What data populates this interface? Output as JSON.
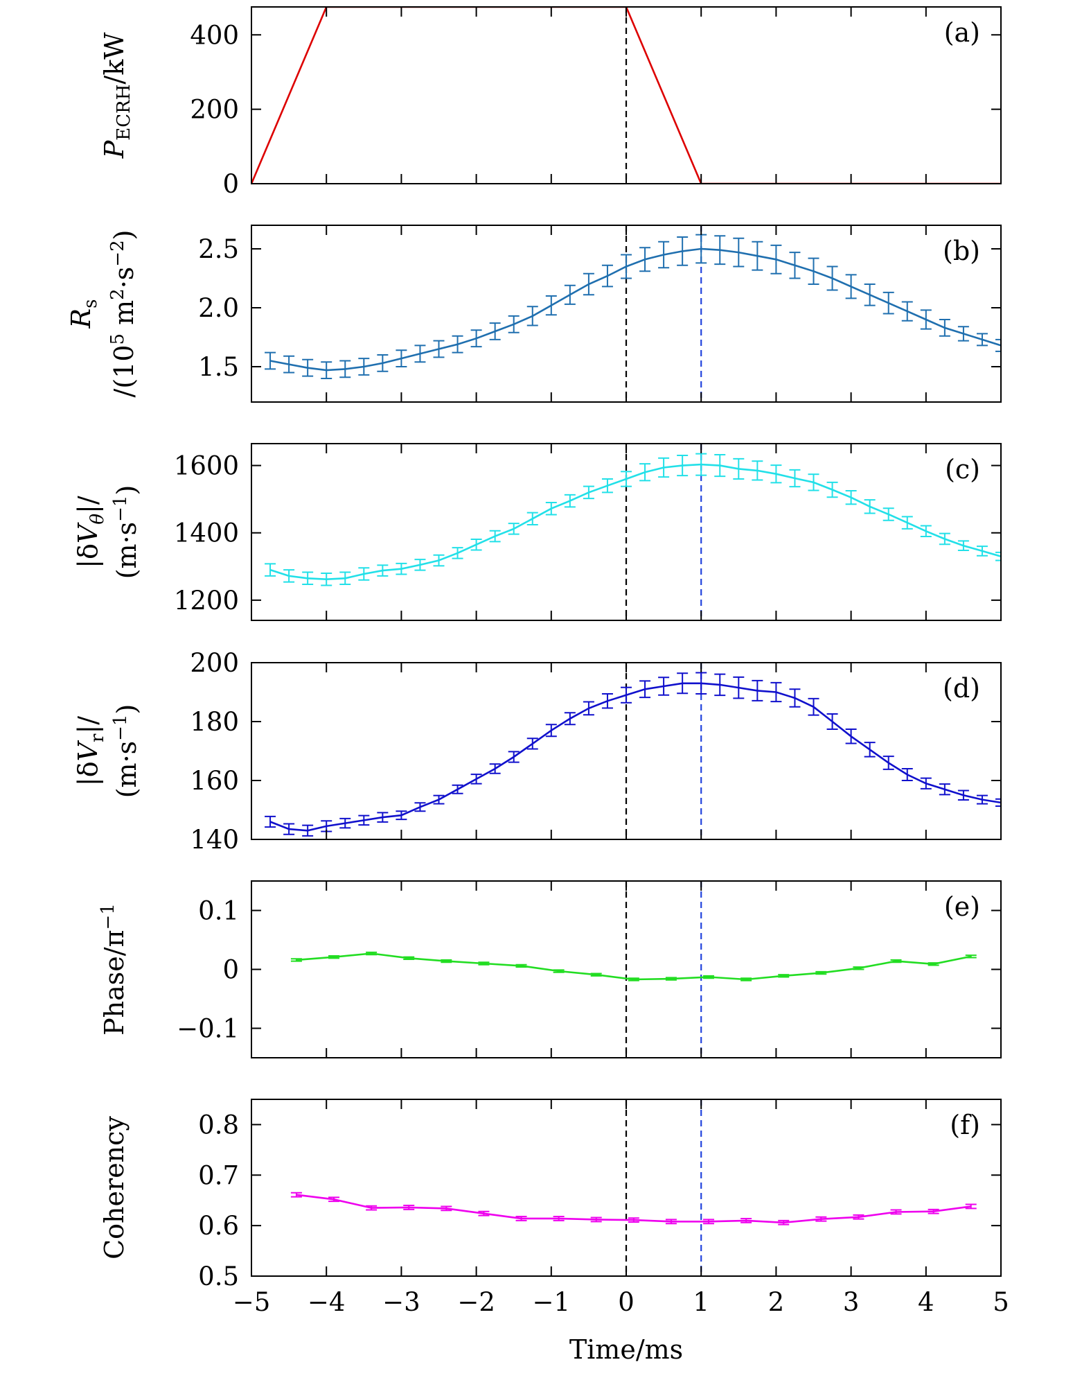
{
  "chart_data": [
    {
      "type": "line",
      "panel_label": "(a)",
      "ylabel": {
        "var": "P",
        "sub": "ECRH",
        "rest": "/kW"
      },
      "xlim": [
        -5,
        5
      ],
      "ylim": [
        0,
        475
      ],
      "yticks": [
        0,
        200,
        400
      ],
      "ytick_labels": [
        "0",
        "200",
        "400"
      ],
      "grid": false,
      "series": [
        {
          "color": "#dd0000",
          "errorbars": false,
          "x": [
            -5,
            -4,
            0,
            1,
            5
          ],
          "y": [
            0,
            475,
            475,
            0,
            0
          ]
        }
      ],
      "vlines": [
        {
          "x": 0,
          "color": "#000000"
        }
      ]
    },
    {
      "type": "line",
      "panel_label": "(b)",
      "ylabel": {
        "line1_var": "R",
        "line1_sub": "s",
        "line2": "/(10",
        "line2_sup": "5",
        "line2_rest": " m",
        "line2_sup2": "2",
        "line2_rest2": "·s",
        "line2_sup3": "−2",
        "line2_end": ")"
      },
      "xlim": [
        -5,
        5
      ],
      "ylim": [
        1.2,
        2.7
      ],
      "yticks": [
        1.5,
        2.0,
        2.5
      ],
      "ytick_labels": [
        "1.5",
        "2.0",
        "2.5"
      ],
      "grid": false,
      "series": [
        {
          "color": "#1f6faf",
          "errorbars": true,
          "x": [
            -4.75,
            -4.5,
            -4.25,
            -4.0,
            -3.75,
            -3.5,
            -3.25,
            -3.0,
            -2.75,
            -2.5,
            -2.25,
            -2.0,
            -1.75,
            -1.5,
            -1.25,
            -1.0,
            -0.75,
            -0.5,
            -0.25,
            0.0,
            0.25,
            0.5,
            0.75,
            1.0,
            1.25,
            1.5,
            1.75,
            2.0,
            2.25,
            2.5,
            2.75,
            3.0,
            3.25,
            3.5,
            3.75,
            4.0,
            4.25,
            4.5,
            4.75,
            5.0
          ],
          "y": [
            1.55,
            1.52,
            1.49,
            1.47,
            1.48,
            1.5,
            1.53,
            1.57,
            1.61,
            1.65,
            1.69,
            1.74,
            1.8,
            1.86,
            1.93,
            2.02,
            2.11,
            2.2,
            2.27,
            2.35,
            2.41,
            2.45,
            2.48,
            2.5,
            2.49,
            2.47,
            2.44,
            2.41,
            2.36,
            2.31,
            2.25,
            2.18,
            2.11,
            2.04,
            1.97,
            1.9,
            1.83,
            1.78,
            1.73,
            1.68
          ],
          "err": [
            0.07,
            0.07,
            0.07,
            0.07,
            0.07,
            0.07,
            0.07,
            0.07,
            0.07,
            0.07,
            0.07,
            0.07,
            0.07,
            0.07,
            0.08,
            0.08,
            0.08,
            0.09,
            0.09,
            0.1,
            0.1,
            0.11,
            0.12,
            0.12,
            0.12,
            0.12,
            0.12,
            0.12,
            0.11,
            0.11,
            0.1,
            0.1,
            0.09,
            0.09,
            0.08,
            0.08,
            0.07,
            0.06,
            0.05,
            0.05
          ]
        }
      ],
      "vlines": [
        {
          "x": 0,
          "color": "#000000"
        },
        {
          "x": 1,
          "color": "#2244dd"
        }
      ]
    },
    {
      "type": "line",
      "panel_label": "(c)",
      "ylabel": {
        "line1": "|δ",
        "line1_var": "V",
        "line1_sub": "θ",
        "line1_end": "|/",
        "line2": "(m·s",
        "line2_sup": "−1",
        "line2_end": ")"
      },
      "xlim": [
        -5,
        5
      ],
      "ylim": [
        1140,
        1665
      ],
      "yticks": [
        1200,
        1400,
        1600
      ],
      "ytick_labels": [
        "1200",
        "1400",
        "1600"
      ],
      "grid": false,
      "series": [
        {
          "color": "#22e0e8",
          "errorbars": true,
          "x": [
            -4.75,
            -4.5,
            -4.25,
            -4.0,
            -3.75,
            -3.5,
            -3.25,
            -3.0,
            -2.75,
            -2.5,
            -2.25,
            -2.0,
            -1.75,
            -1.5,
            -1.25,
            -1.0,
            -0.75,
            -0.5,
            -0.25,
            0.0,
            0.25,
            0.5,
            0.75,
            1.0,
            1.25,
            1.5,
            1.75,
            2.0,
            2.25,
            2.5,
            2.75,
            3.0,
            3.25,
            3.5,
            3.75,
            4.0,
            4.25,
            4.5,
            4.75,
            5.0
          ],
          "y": [
            1290,
            1272,
            1265,
            1262,
            1265,
            1278,
            1288,
            1293,
            1305,
            1318,
            1340,
            1365,
            1390,
            1412,
            1442,
            1472,
            1495,
            1520,
            1540,
            1560,
            1580,
            1594,
            1600,
            1603,
            1600,
            1590,
            1585,
            1575,
            1562,
            1550,
            1528,
            1505,
            1478,
            1455,
            1430,
            1405,
            1382,
            1362,
            1346,
            1330
          ],
          "err": [
            18,
            18,
            18,
            18,
            18,
            18,
            16,
            16,
            16,
            16,
            16,
            16,
            16,
            16,
            18,
            18,
            18,
            18,
            20,
            22,
            25,
            28,
            30,
            32,
            32,
            30,
            28,
            26,
            25,
            24,
            22,
            20,
            20,
            18,
            18,
            16,
            16,
            14,
            14,
            12
          ]
        }
      ],
      "vlines": [
        {
          "x": 0,
          "color": "#000000"
        },
        {
          "x": 1,
          "color": "#2244dd"
        }
      ]
    },
    {
      "type": "line",
      "panel_label": "(d)",
      "ylabel": {
        "line1": "|δ",
        "line1_var": "V",
        "line1_sub": "r",
        "line1_end": "|/",
        "line2": "(m·s",
        "line2_sup": "−1",
        "line2_end": ")"
      },
      "xlim": [
        -5,
        5
      ],
      "ylim": [
        140,
        200
      ],
      "yticks": [
        140,
        160,
        180,
        200
      ],
      "ytick_labels": [
        "140",
        "160",
        "180",
        "200"
      ],
      "grid": false,
      "series": [
        {
          "color": "#1010cc",
          "errorbars": true,
          "x": [
            -4.75,
            -4.5,
            -4.25,
            -4.0,
            -3.75,
            -3.5,
            -3.25,
            -3.0,
            -2.75,
            -2.5,
            -2.25,
            -2.0,
            -1.75,
            -1.5,
            -1.25,
            -1.0,
            -0.75,
            -0.5,
            -0.25,
            0.0,
            0.25,
            0.5,
            0.75,
            1.0,
            1.25,
            1.5,
            1.75,
            2.0,
            2.25,
            2.5,
            2.75,
            3.0,
            3.25,
            3.5,
            3.75,
            4.0,
            4.25,
            4.5,
            4.75,
            5.0
          ],
          "y": [
            146,
            143.5,
            143,
            144.5,
            145.5,
            146.5,
            147.5,
            148.2,
            151,
            153.5,
            157,
            160.5,
            164,
            168,
            172.5,
            177,
            181,
            184.5,
            187,
            189,
            191,
            192,
            193,
            193,
            192.5,
            191.5,
            190.5,
            190,
            188,
            185,
            180,
            175,
            170.5,
            166,
            162,
            159,
            157,
            155,
            153.5,
            152.5
          ],
          "err": [
            1.8,
            1.8,
            1.8,
            1.8,
            1.6,
            1.6,
            1.6,
            1.4,
            1.4,
            1.4,
            1.4,
            1.6,
            1.6,
            1.8,
            1.8,
            2.0,
            2.0,
            2.2,
            2.4,
            2.6,
            2.8,
            3.0,
            3.4,
            3.6,
            3.6,
            3.6,
            3.4,
            3.2,
            3.0,
            2.8,
            2.6,
            2.4,
            2.4,
            2.2,
            2.0,
            1.8,
            1.8,
            1.6,
            1.4,
            1.2
          ]
        }
      ],
      "vlines": [
        {
          "x": 0,
          "color": "#000000"
        },
        {
          "x": 1,
          "color": "#2244dd"
        }
      ]
    },
    {
      "type": "line",
      "panel_label": "(e)",
      "ylabel": {
        "line1": "Phase/π",
        "line1_sup": "−1"
      },
      "xlim": [
        -5,
        5
      ],
      "ylim": [
        -0.15,
        0.15
      ],
      "yticks": [
        -0.1,
        0,
        0.1
      ],
      "ytick_labels": [
        "−0.1",
        "0",
        "0.1"
      ],
      "grid": false,
      "series": [
        {
          "color": "#22dd22",
          "errorbars": true,
          "x": [
            -4.4,
            -3.9,
            -3.4,
            -2.9,
            -2.4,
            -1.9,
            -1.4,
            -0.9,
            -0.4,
            0.1,
            0.6,
            1.1,
            1.6,
            2.1,
            2.6,
            3.1,
            3.6,
            4.1,
            4.6
          ],
          "y": [
            0.016,
            0.021,
            0.027,
            0.019,
            0.014,
            0.01,
            0.006,
            -0.003,
            -0.009,
            -0.017,
            -0.016,
            -0.013,
            -0.017,
            -0.011,
            -0.006,
            0.002,
            0.014,
            0.009,
            0.022
          ],
          "err": [
            0.002,
            0.002,
            0.002,
            0.002,
            0.002,
            0.002,
            0.002,
            0.002,
            0.002,
            0.002,
            0.002,
            0.002,
            0.002,
            0.002,
            0.002,
            0.002,
            0.002,
            0.002,
            0.002
          ]
        }
      ],
      "vlines": [
        {
          "x": 0,
          "color": "#000000"
        },
        {
          "x": 1,
          "color": "#2244dd"
        }
      ]
    },
    {
      "type": "line",
      "panel_label": "(f)",
      "ylabel": {
        "line1": "Coherency"
      },
      "xlabel": "Time/ms",
      "xlim": [
        -5,
        5
      ],
      "ylim": [
        0.5,
        0.85
      ],
      "yticks": [
        0.5,
        0.6,
        0.7,
        0.8
      ],
      "ytick_labels": [
        "0.5",
        "0.6",
        "0.7",
        "0.8"
      ],
      "xticks": [
        -5,
        -4,
        -3,
        -2,
        -1,
        0,
        1,
        2,
        3,
        4,
        5
      ],
      "xtick_labels": [
        "−5",
        "−4",
        "−3",
        "−2",
        "−1",
        "0",
        "1",
        "2",
        "3",
        "4",
        "5"
      ],
      "grid": false,
      "series": [
        {
          "color": "#ee00ee",
          "errorbars": true,
          "x": [
            -4.4,
            -3.9,
            -3.4,
            -2.9,
            -2.4,
            -1.9,
            -1.4,
            -0.9,
            -0.4,
            0.1,
            0.6,
            1.1,
            1.6,
            2.1,
            2.6,
            3.1,
            3.6,
            4.1,
            4.6
          ],
          "y": [
            0.661,
            0.652,
            0.635,
            0.636,
            0.634,
            0.624,
            0.614,
            0.614,
            0.612,
            0.611,
            0.608,
            0.608,
            0.61,
            0.606,
            0.613,
            0.617,
            0.627,
            0.628,
            0.638
          ],
          "err": [
            0.004,
            0.004,
            0.004,
            0.004,
            0.004,
            0.004,
            0.004,
            0.004,
            0.004,
            0.004,
            0.004,
            0.004,
            0.004,
            0.004,
            0.004,
            0.004,
            0.004,
            0.004,
            0.004
          ]
        }
      ],
      "vlines": [
        {
          "x": 0,
          "color": "#000000"
        },
        {
          "x": 1,
          "color": "#2244dd"
        }
      ]
    }
  ]
}
